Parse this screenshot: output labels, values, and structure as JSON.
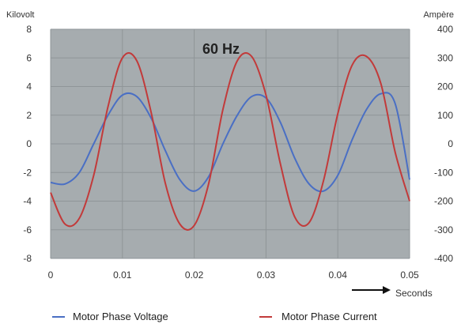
{
  "chart_data": {
    "type": "line",
    "title": "",
    "annotation": "60 Hz",
    "xlabel": "Seconds",
    "ylabel_left": "Kilovolt",
    "ylabel_right": "Ampère",
    "xlim": [
      0,
      0.05
    ],
    "ylim_left": [
      -8,
      8
    ],
    "ylim_right": [
      -400,
      400
    ],
    "x_ticks": [
      "0",
      "0.01",
      "0.02",
      "0.03",
      "0.04",
      "0.05"
    ],
    "y_ticks_left": [
      "-8",
      "-6",
      "-4",
      "-2",
      "0",
      "2",
      "4",
      "6",
      "8"
    ],
    "y_ticks_right": [
      "-400",
      "-300",
      "-200",
      "-100",
      "0",
      "100",
      "200",
      "300",
      "400"
    ],
    "grid": true,
    "legend_position": "bottom",
    "colors": {
      "plot_bg": "#a6acaf",
      "grid": "#8f9598",
      "voltage": "#4a6fc4",
      "current": "#c23a3a"
    },
    "series": [
      {
        "name": "Motor Phase Voltage",
        "axis": "left",
        "x": [
          0,
          0.002,
          0.004,
          0.006,
          0.008,
          0.01,
          0.012,
          0.014,
          0.016,
          0.018,
          0.02,
          0.022,
          0.024,
          0.026,
          0.028,
          0.03,
          0.032,
          0.034,
          0.036,
          0.038,
          0.04,
          0.042,
          0.044,
          0.046,
          0.048,
          0.05
        ],
        "values": [
          -2.7,
          -2.8,
          -2.0,
          0.0,
          2.0,
          3.4,
          3.3,
          1.8,
          -0.5,
          -2.5,
          -3.3,
          -2.3,
          0.0,
          2.0,
          3.3,
          3.2,
          1.5,
          -1.0,
          -2.8,
          -3.3,
          -2.2,
          0.3,
          2.4,
          3.5,
          2.8,
          -2.5
        ]
      },
      {
        "name": "Motor Phase Current",
        "axis": "right",
        "x": [
          0,
          0.002,
          0.004,
          0.006,
          0.008,
          0.01,
          0.012,
          0.014,
          0.016,
          0.018,
          0.02,
          0.022,
          0.024,
          0.026,
          0.028,
          0.03,
          0.032,
          0.034,
          0.036,
          0.038,
          0.04,
          0.042,
          0.044,
          0.046,
          0.048,
          0.05
        ],
        "values": [
          -170,
          -280,
          -260,
          -110,
          130,
          300,
          290,
          110,
          -140,
          -280,
          -285,
          -140,
          120,
          290,
          305,
          170,
          -70,
          -255,
          -275,
          -130,
          105,
          275,
          305,
          210,
          -30,
          -200
        ]
      }
    ]
  }
}
